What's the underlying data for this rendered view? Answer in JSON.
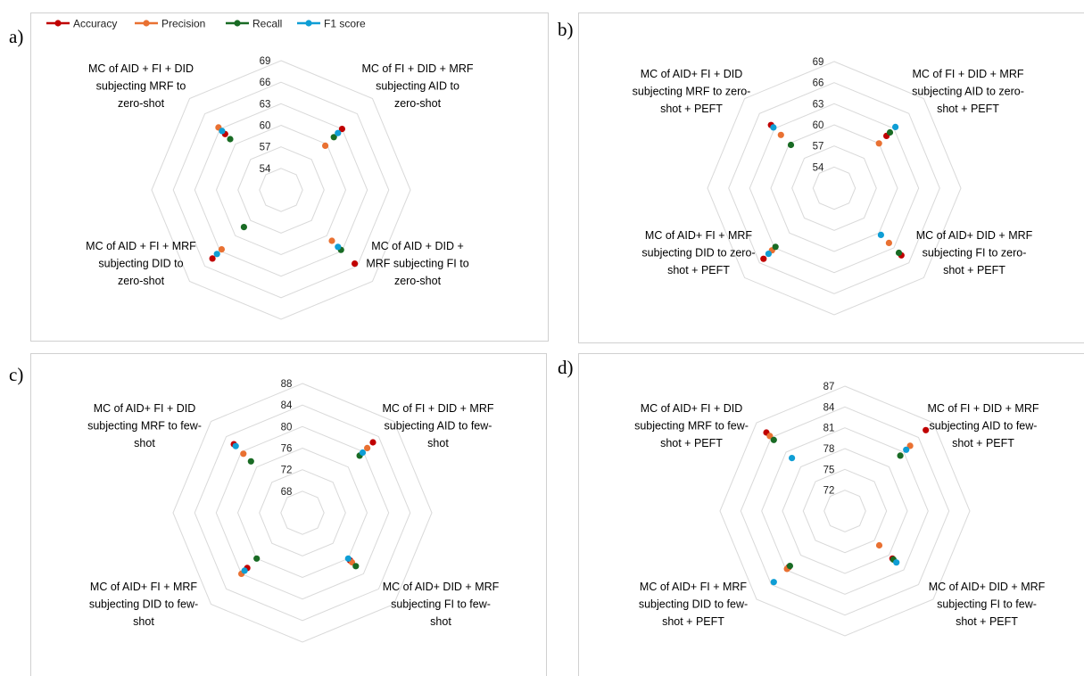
{
  "legend": [
    {
      "name": "Accuracy",
      "color": "#C00000"
    },
    {
      "name": "Precision",
      "color": "#E97132"
    },
    {
      "name": "Recall",
      "color": "#196B24"
    },
    {
      "name": "F1 score",
      "color": "#0F9ED5"
    }
  ],
  "chart_data": [
    {
      "type": "radar",
      "panel_label": "a)",
      "ticks": [
        "54",
        "57",
        "60",
        "63",
        "66",
        "69"
      ],
      "range": [
        51,
        69
      ],
      "grid": true,
      "axes": [
        [
          "MC of AID + FI + DID",
          "subjecting MRF to",
          "zero-shot"
        ],
        [
          "MC of FI + DID + MRF",
          "subjecting AID to",
          "zero-shot"
        ],
        [
          "MC of AID + DID +",
          "MRF subjecting FI to",
          "zero-shot"
        ],
        [
          "MC of AID + FI + MRF",
          "subjecting DID to",
          "zero-shot"
        ]
      ],
      "series": [
        {
          "name": "Accuracy",
          "values": [
            62.0,
            63.0,
            65.5,
            64.5
          ]
        },
        {
          "name": "Precision",
          "values": [
            63.3,
            59.7,
            61.0,
            62.7
          ]
        },
        {
          "name": "Recall",
          "values": [
            61.0,
            61.4,
            62.8,
            58.3
          ]
        },
        {
          "name": "F1 score",
          "values": [
            62.6,
            62.2,
            62.2,
            63.6
          ]
        }
      ]
    },
    {
      "type": "radar",
      "panel_label": "b)",
      "ticks": [
        "54",
        "57",
        "60",
        "63",
        "66",
        "69"
      ],
      "range": [
        51,
        69
      ],
      "grid": true,
      "axes": [
        [
          "MC of AID+ FI + DID",
          "subjecting MRF to zero-",
          "shot + PEFT"
        ],
        [
          "MC of FI + DID + MRF",
          "subjecting  AID to zero-",
          "shot + PEFT"
        ],
        [
          "MC of AID+ DID + MRF",
          "subjecting FI to zero-",
          "shot + PEFT"
        ],
        [
          "MC of AID+ FI + MRF",
          "subjecting DID to zero-",
          "shot + PEFT"
        ]
      ],
      "series": [
        {
          "name": "Accuracy",
          "values": [
            63.7,
            61.5,
            64.5,
            65.2
          ]
        },
        {
          "name": "Precision",
          "values": [
            61.7,
            60.0,
            62.0,
            63.5
          ]
        },
        {
          "name": "Recall",
          "values": [
            59.7,
            62.2,
            64.0,
            62.8
          ]
        },
        {
          "name": "F1 score",
          "values": [
            63.2,
            63.3,
            60.4,
            64.2
          ]
        }
      ]
    },
    {
      "type": "radar",
      "panel_label": "c)",
      "ticks": [
        "68",
        "72",
        "76",
        "80",
        "84",
        "88"
      ],
      "range": [
        64,
        88
      ],
      "grid": true,
      "axes": [
        [
          "MC of AID+ FI + DID",
          "subjecting MRF  to few-",
          "shot"
        ],
        [
          "MC of FI + DID + MRF",
          "subjecting AID to few-",
          "shot"
        ],
        [
          "MC of AID+ DID + MRF",
          "subjecting FI  to few-",
          "shot"
        ],
        [
          "MC of AID+ FI + MRF",
          "subjecting DID  to few-",
          "shot"
        ]
      ],
      "series": [
        {
          "name": "Accuracy",
          "values": [
            82.0,
            82.5,
            76.5,
            78.5
          ]
        },
        {
          "name": "Precision",
          "values": [
            79.5,
            81.0,
            77.0,
            80.0
          ]
        },
        {
          "name": "Recall",
          "values": [
            77.5,
            79.0,
            78.0,
            76.0
          ]
        },
        {
          "name": "F1 score",
          "values": [
            81.5,
            79.8,
            76.0,
            79.2
          ]
        }
      ]
    },
    {
      "type": "radar",
      "panel_label": "d)",
      "ticks": [
        "72",
        "75",
        "78",
        "81",
        "84",
        "87"
      ],
      "range": [
        69,
        87
      ],
      "grid": true,
      "axes": [
        [
          "MC of AID+ FI + DID",
          "subjecting MRF  to few-",
          "shot + PEFT"
        ],
        [
          "MC of FI + DID + MRF",
          "subjecting AID to few-",
          "shot + PEFT"
        ],
        [
          "MC of AID+ DID + MRF",
          "subjecting FI  to few-",
          "shot + PEFT"
        ],
        [
          "MC of AID+ FI + MRF",
          "subjecting DID  to few-",
          "shot + PEFT"
        ]
      ],
      "series": [
        {
          "name": "Accuracy",
          "values": [
            85.0,
            85.5,
            78.7,
            80.5
          ]
        },
        {
          "name": "Precision",
          "values": [
            84.3,
            82.3,
            76.0,
            80.8
          ]
        },
        {
          "name": "Recall",
          "values": [
            83.5,
            80.3,
            78.9,
            80.2
          ]
        },
        {
          "name": "F1 score",
          "values": [
            79.8,
            81.5,
            79.5,
            83.5
          ]
        }
      ]
    }
  ]
}
